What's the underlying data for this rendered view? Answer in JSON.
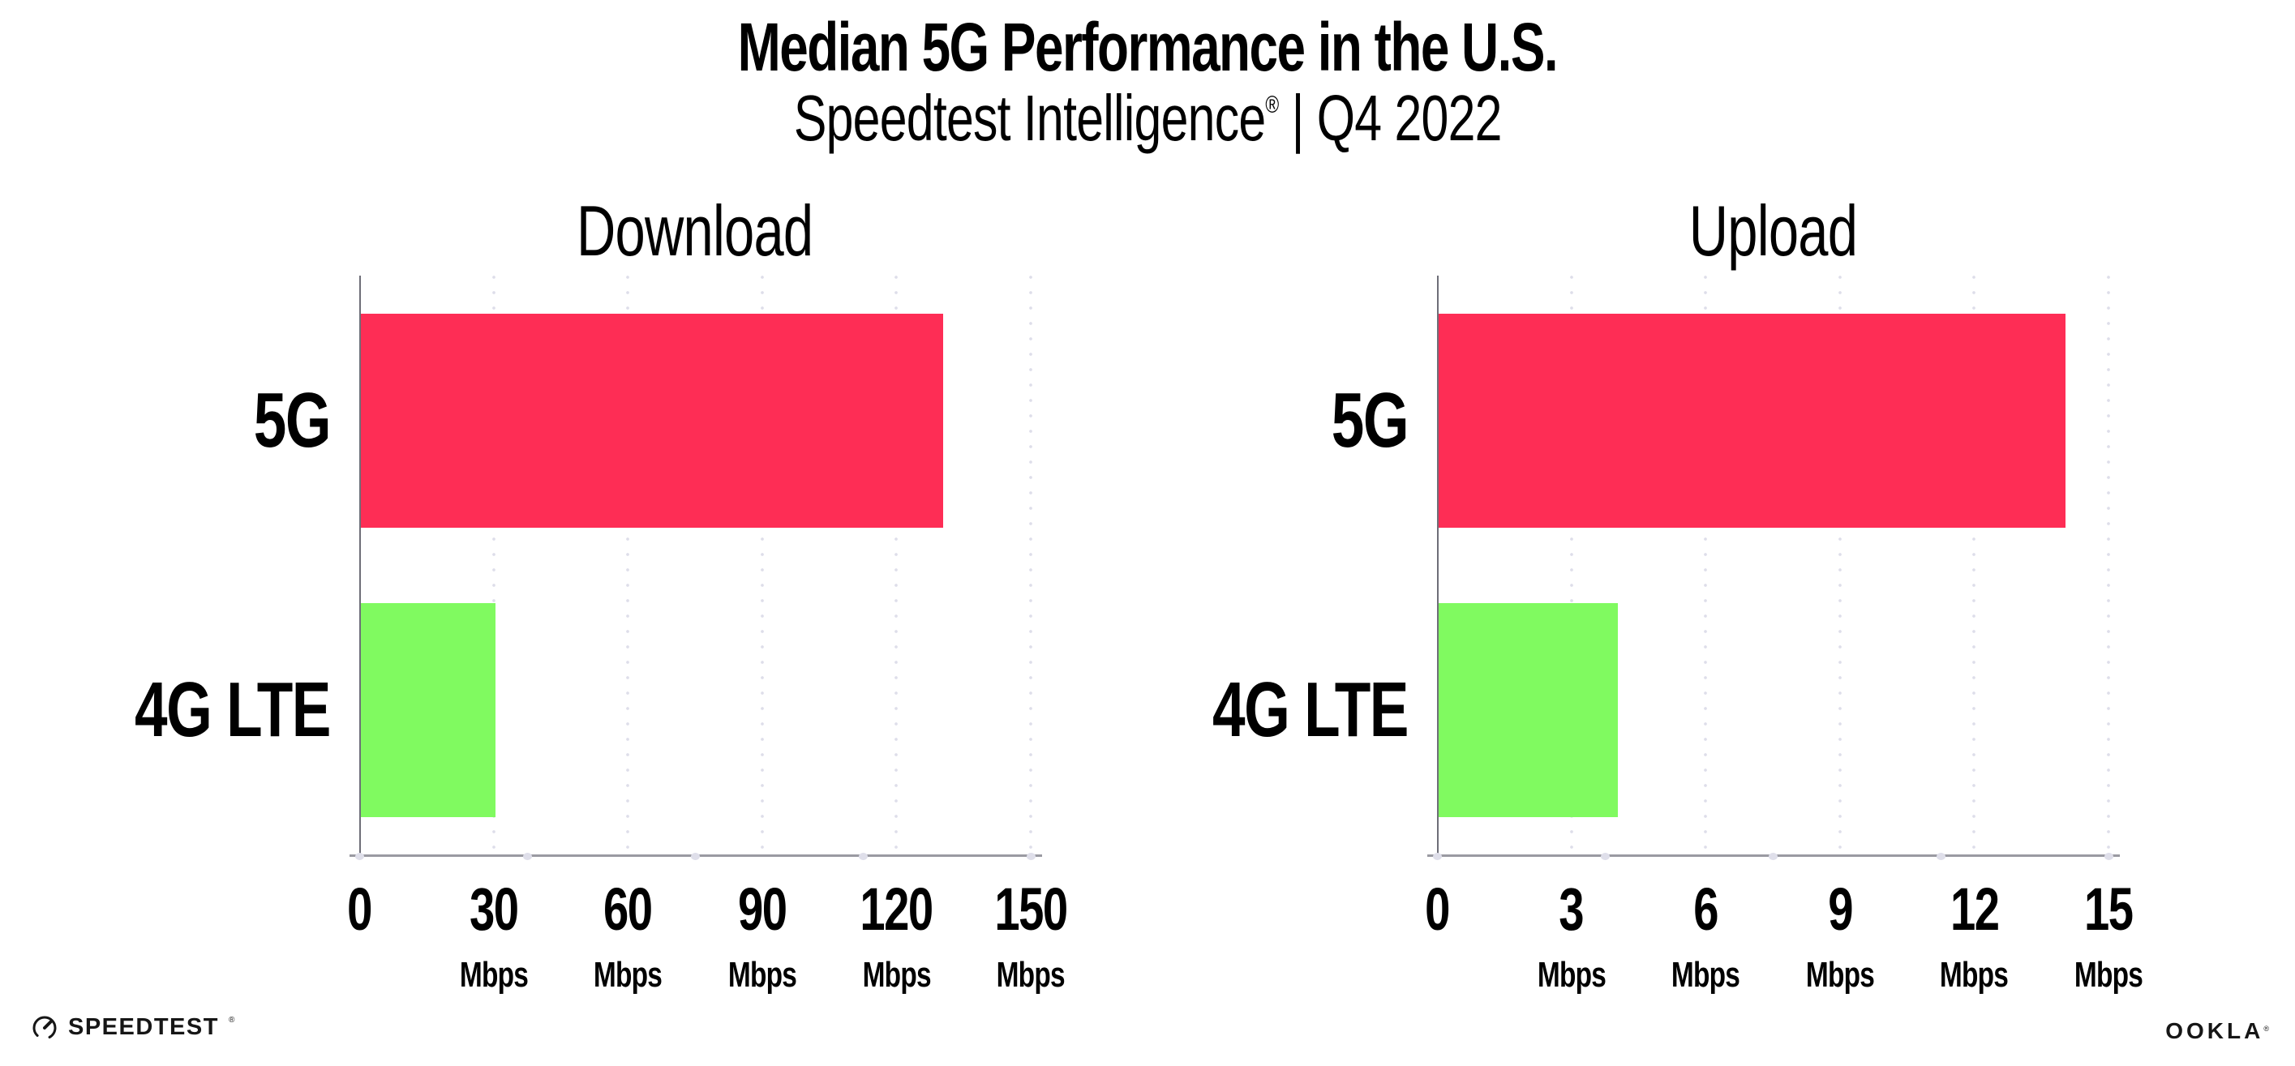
{
  "header": {
    "title": "Median 5G Performance in the U.S.",
    "subtitle_brand": "Speedtest Intelligence",
    "subtitle_reg": "®",
    "subtitle_rest": " | Q4 2022"
  },
  "chart_data": [
    {
      "type": "bar",
      "orientation": "horizontal",
      "title": "Download",
      "categories": [
        "5G",
        "4G LTE"
      ],
      "values": [
        130,
        30
      ],
      "unit": "Mbps",
      "xlabel": "",
      "ylabel": "",
      "xlim": [
        0,
        150
      ],
      "xticks": [
        0,
        30,
        60,
        90,
        120,
        150
      ],
      "xtick_unit": "Mbps",
      "grid": "vertical-dotted",
      "legend": "none",
      "bar_colors": [
        "#fe2d55",
        "#80fa60"
      ]
    },
    {
      "type": "bar",
      "orientation": "horizontal",
      "title": "Upload",
      "categories": [
        "5G",
        "4G LTE"
      ],
      "values": [
        14,
        4
      ],
      "unit": "Mbps",
      "xlabel": "",
      "ylabel": "",
      "xlim": [
        0,
        15
      ],
      "xticks": [
        0,
        3,
        6,
        9,
        12,
        15
      ],
      "xtick_unit": "Mbps",
      "grid": "vertical-dotted",
      "legend": "none",
      "bar_colors": [
        "#fe2d55",
        "#80fa60"
      ]
    }
  ],
  "colors": {
    "bar_5g": "#fe2d55",
    "bar_4g_lte": "#80fa60",
    "gridline": "#dedeea",
    "x_axis": "#9a9aa2",
    "y_axis": "#6e6e78",
    "text": "#000000"
  },
  "footer": {
    "speedtest_label": "SPEEDTEST",
    "speedtest_mark": "®",
    "ookla_label": "OOKLA",
    "ookla_mark": "®"
  }
}
